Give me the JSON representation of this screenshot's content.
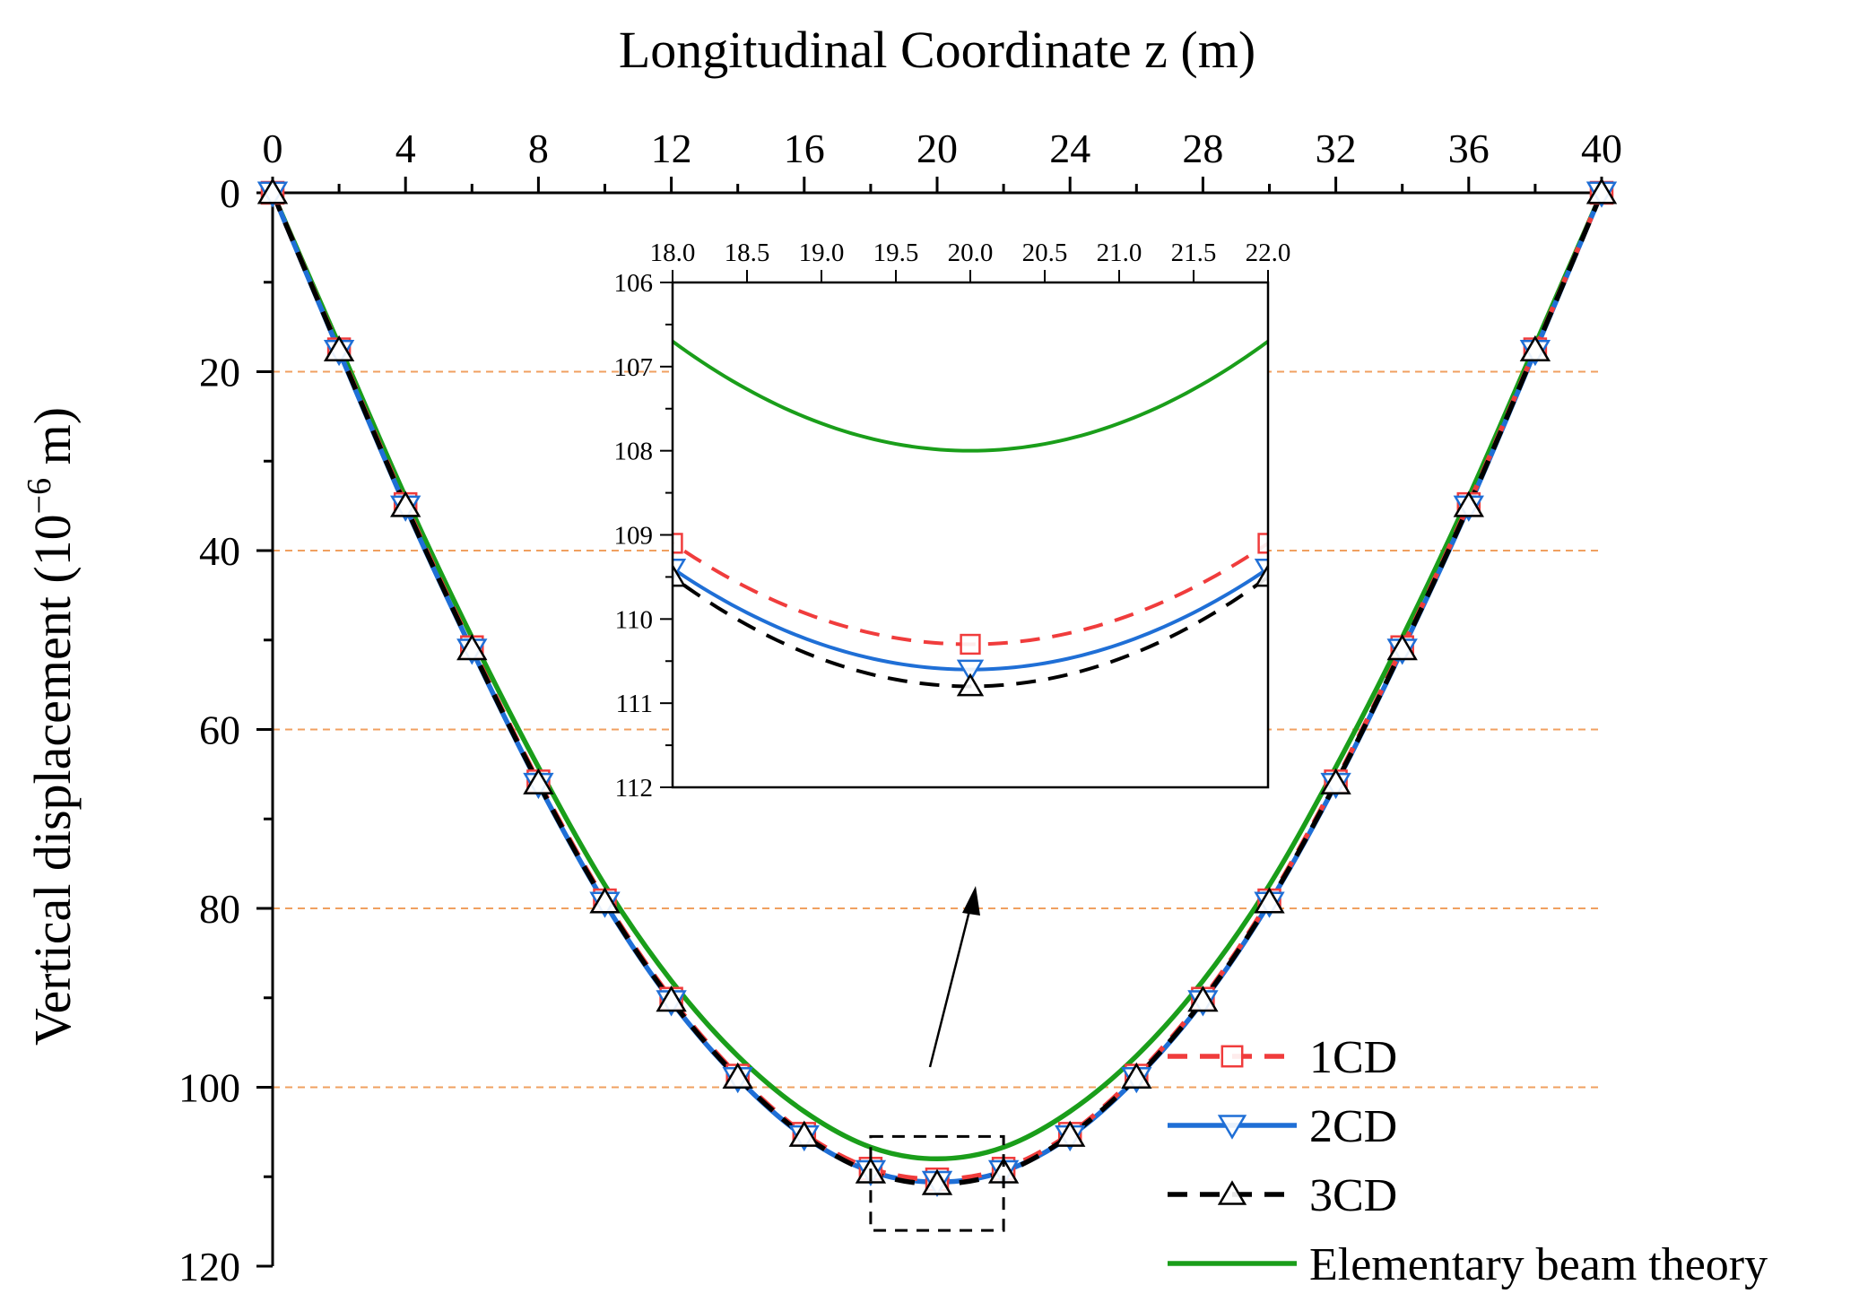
{
  "chart_data": {
    "type": "line",
    "xlabel": "Longitudinal Coordinate z (m)",
    "ylabel_main": "Vertical displacement (10",
    "ylabel_exp": "−6",
    "ylabel_tail": " m)",
    "xlim": [
      0,
      40
    ],
    "ylim": [
      0,
      120
    ],
    "y_inverted": true,
    "x_axis_position": "top",
    "xticks": [
      "0",
      "4",
      "8",
      "12",
      "16",
      "20",
      "24",
      "28",
      "32",
      "36",
      "40"
    ],
    "yticks": [
      "0",
      "20",
      "40",
      "60",
      "80",
      "100",
      "120"
    ],
    "grid": {
      "horizontal_dashed_at": [
        20,
        40,
        60,
        80,
        100
      ],
      "color": "#f0a060"
    },
    "legend_position": "bottom-right",
    "x": [
      0,
      2,
      4,
      6,
      8,
      10,
      12,
      14,
      16,
      18,
      20,
      22,
      24,
      26,
      28,
      30,
      32,
      34,
      36,
      38,
      40
    ],
    "series": [
      {
        "name": "1CD",
        "color": "#f03c3c",
        "line": "dashed",
        "marker": "square",
        "values": [
          0,
          17.5,
          34.8,
          50.8,
          65.8,
          79.1,
          90.1,
          98.7,
          105.2,
          109.1,
          110.3,
          109.1,
          105.2,
          98.7,
          90.1,
          79.1,
          65.8,
          50.8,
          34.8,
          17.5,
          0
        ]
      },
      {
        "name": "2CD",
        "color": "#1f6fd6",
        "line": "solid",
        "marker": "triangle-down",
        "values": [
          0,
          17.7,
          35.1,
          51.1,
          66.1,
          79.4,
          90.4,
          99.0,
          105.5,
          109.4,
          110.6,
          109.4,
          105.5,
          99.0,
          90.4,
          79.4,
          66.1,
          51.1,
          35.1,
          17.7,
          0
        ]
      },
      {
        "name": "3CD",
        "color": "#000000",
        "line": "dashed",
        "marker": "triangle-up",
        "values": [
          0,
          17.6,
          35.0,
          51.0,
          66.0,
          79.3,
          90.3,
          98.9,
          105.4,
          109.5,
          110.8,
          109.5,
          105.4,
          98.9,
          90.3,
          79.3,
          66.0,
          51.0,
          35.0,
          17.6,
          0
        ]
      },
      {
        "name": "Elementary beam theory",
        "color": "#1a9e1a",
        "line": "solid",
        "marker": "none",
        "values": [
          0,
          17.0,
          34.0,
          49.7,
          64.2,
          77.4,
          88.1,
          96.5,
          102.7,
          106.7,
          108.0,
          106.7,
          102.7,
          96.5,
          88.1,
          77.4,
          64.2,
          49.7,
          34.0,
          17.0,
          0
        ]
      }
    ],
    "inset": {
      "xlim": [
        18,
        22
      ],
      "ylim": [
        106,
        112
      ],
      "xticks": [
        "18.0",
        "18.5",
        "19.0",
        "19.5",
        "20.0",
        "20.5",
        "21.0",
        "21.5",
        "22.0"
      ],
      "yticks": [
        "106",
        "107",
        "108",
        "109",
        "110",
        "111",
        "112"
      ],
      "zoom_box": {
        "x": [
          18,
          22
        ],
        "y": [
          105.5,
          116
        ]
      }
    }
  }
}
